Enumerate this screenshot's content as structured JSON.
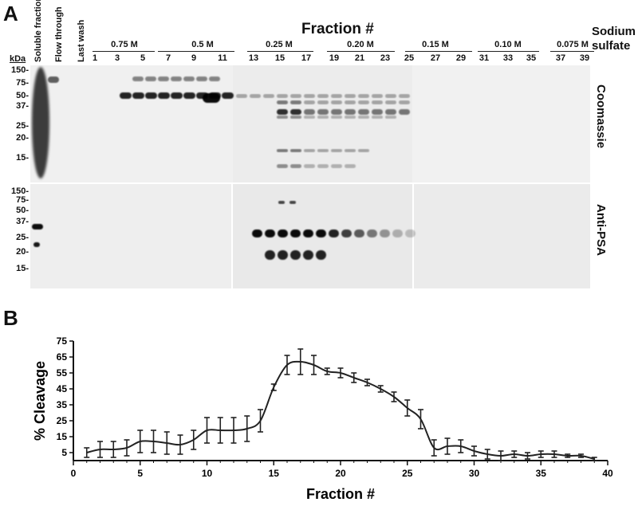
{
  "panel_a": {
    "letter": "A",
    "title": "Fraction #",
    "sodium_label_line1": "Sodium",
    "sodium_label_line2": "sulfate",
    "kda_label": "kDa",
    "coomassie_label": "Coomassie",
    "anti_psa_label": "Anti-PSA",
    "rotated_lanes": [
      "Soluble fraction",
      "Flow through",
      "Last wash"
    ],
    "lane_numbers": [
      "1",
      "3",
      "5",
      "7",
      "9",
      "11",
      "13",
      "15",
      "17",
      "19",
      "21",
      "23",
      "25",
      "27",
      "29",
      "31",
      "33",
      "35",
      "37",
      "39"
    ],
    "concentrations": [
      "0.75 M",
      "0.5 M",
      "0.25 M",
      "0.20 M",
      "0.15 M",
      "0.10 M",
      "0.075 M"
    ],
    "coomassie_kda_ticks": [
      "150-",
      "75-",
      "50-",
      "37-",
      "25-",
      "20-",
      "15-"
    ],
    "antipsa_kda_ticks": [
      "150-",
      "75-",
      "50-",
      "37-",
      "25-",
      "20-",
      "15-"
    ]
  },
  "panel_b": {
    "letter": "B"
  },
  "chart_data": {
    "type": "line",
    "xlabel": "Fraction #",
    "ylabel": "% Cleavage",
    "xlim": [
      0,
      40
    ],
    "ylim": [
      0,
      75
    ],
    "xticks": [
      0,
      5,
      10,
      15,
      20,
      25,
      30,
      35,
      40
    ],
    "yticks": [
      5,
      15,
      25,
      35,
      45,
      55,
      65,
      75
    ],
    "grid": false,
    "series": [
      {
        "x": [
          1,
          2,
          3,
          4,
          5,
          6,
          7,
          8,
          9,
          10,
          11,
          12,
          13,
          14,
          15,
          16,
          17,
          18,
          19,
          20,
          21,
          22,
          23,
          24,
          25,
          26,
          27,
          28,
          29,
          30,
          31,
          32,
          33,
          34,
          35,
          36,
          37,
          38,
          39
        ],
        "values": [
          5,
          7,
          7,
          8,
          12,
          12,
          11,
          10,
          13,
          19,
          19,
          19,
          20,
          25,
          46,
          60,
          62,
          60,
          56,
          55,
          52,
          49,
          45,
          40,
          33,
          26,
          8,
          9,
          9,
          6,
          4,
          3,
          4,
          3,
          4,
          4,
          3,
          3,
          1
        ],
        "errors": [
          3,
          5,
          5,
          5,
          7,
          7,
          7,
          6,
          6,
          8,
          8,
          8,
          8,
          7,
          2,
          6,
          8,
          6,
          2,
          3,
          3,
          2,
          2,
          3,
          5,
          6,
          5,
          5,
          4,
          3,
          3,
          3,
          2,
          2,
          2,
          2,
          1,
          1,
          1
        ]
      }
    ]
  }
}
